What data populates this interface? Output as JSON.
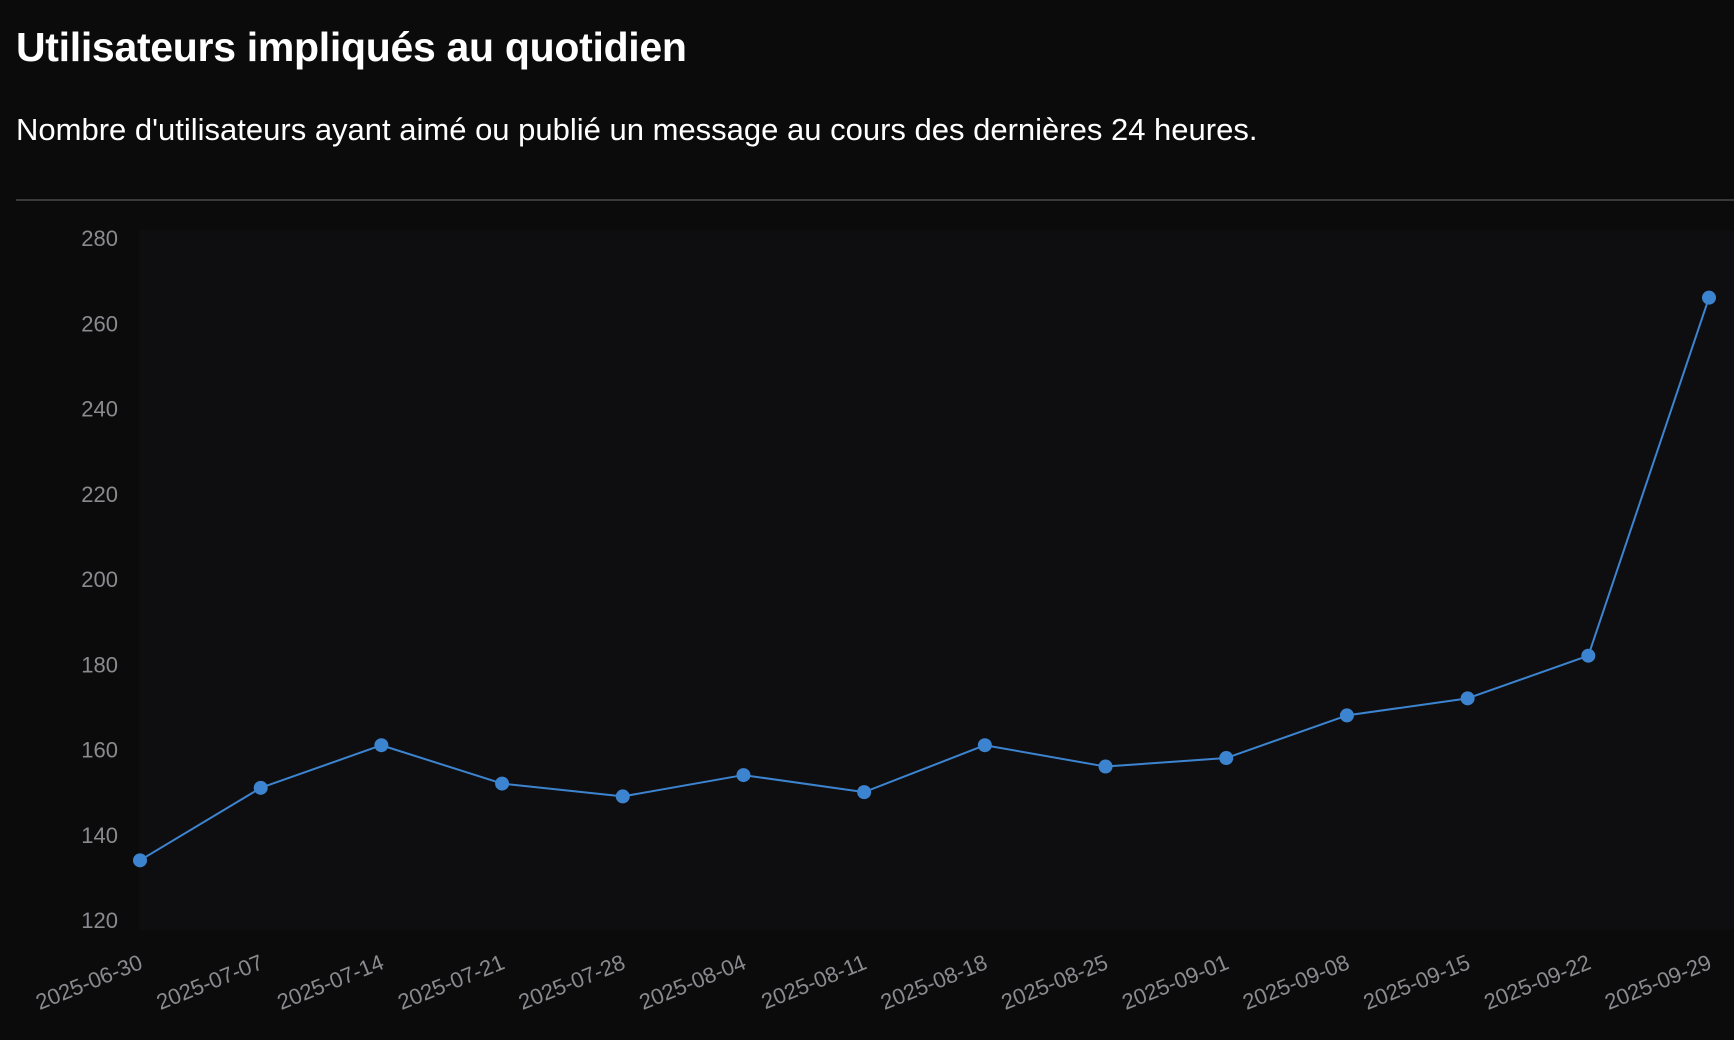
{
  "header": {
    "title": "Utilisateurs impliqués au quotidien",
    "subtitle": "Nombre d'utilisateurs ayant aimé ou publié un message au cours des dernières 24 heures."
  },
  "colors": {
    "background": "#0b0b0c",
    "plot_background": "#0e0e10",
    "line": "#3d84d0",
    "tick_text": "#8a8a8f"
  },
  "chart_data": {
    "type": "line",
    "title": "Utilisateurs impliqués au quotidien",
    "subtitle": "Nombre d'utilisateurs ayant aimé ou publié un message au cours des dernières 24 heures.",
    "xlabel": "",
    "ylabel": "",
    "x": [
      "2025-06-30",
      "2025-07-07",
      "2025-07-14",
      "2025-07-21",
      "2025-07-28",
      "2025-08-04",
      "2025-08-11",
      "2025-08-18",
      "2025-08-25",
      "2025-09-01",
      "2025-09-08",
      "2025-09-15",
      "2025-09-22",
      "2025-09-29"
    ],
    "series": [
      {
        "values": [
          134,
          151,
          161,
          152,
          149,
          154,
          150,
          161,
          156,
          158,
          168,
          172,
          182,
          266
        ]
      }
    ],
    "ylim": [
      120,
      280
    ],
    "yticks": [
      120,
      140,
      160,
      180,
      200,
      220,
      240,
      260,
      280
    ],
    "grid": false,
    "legend": "none",
    "markers": true
  }
}
